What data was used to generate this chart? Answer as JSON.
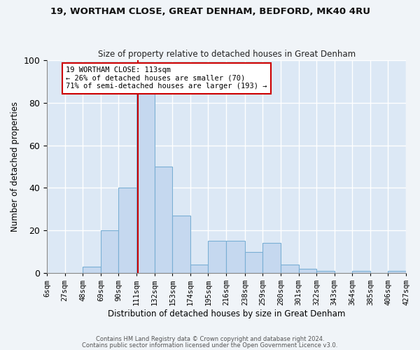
{
  "title1": "19, WORTHAM CLOSE, GREAT DENHAM, BEDFORD, MK40 4RU",
  "title2": "Size of property relative to detached houses in Great Denham",
  "xlabel": "Distribution of detached houses by size in Great Denham",
  "ylabel": "Number of detached properties",
  "bin_edges": [
    6,
    27,
    48,
    69,
    90,
    111,
    132,
    153,
    174,
    195,
    216,
    238,
    259,
    280,
    301,
    322,
    343,
    364,
    385,
    406,
    427
  ],
  "bar_heights": [
    0,
    0,
    3,
    20,
    40,
    85,
    50,
    27,
    4,
    15,
    15,
    10,
    14,
    4,
    2,
    1,
    0,
    1,
    0,
    1
  ],
  "bar_color": "#c5d8ef",
  "bar_edge_color": "#7aafd4",
  "property_size": 113,
  "red_line_color": "#cc0000",
  "annotation_text": "19 WORTHAM CLOSE: 113sqm\n← 26% of detached houses are smaller (70)\n71% of semi-detached houses are larger (193) →",
  "annotation_box_color": "#ffffff",
  "annotation_box_edge": "#cc0000",
  "footer1": "Contains HM Land Registry data © Crown copyright and database right 2024.",
  "footer2": "Contains public sector information licensed under the Open Government Licence v3.0.",
  "ylim": [
    0,
    100
  ],
  "fig_background": "#f0f4f8",
  "plot_background": "#dce8f5",
  "grid_color": "#ffffff",
  "tick_label_fontsize": 7.5
}
